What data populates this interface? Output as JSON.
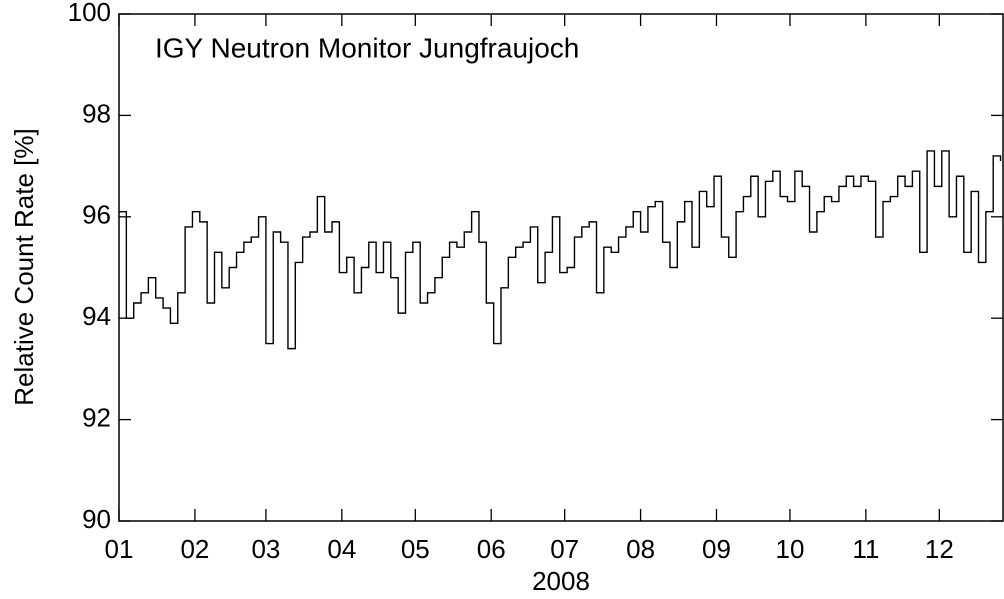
{
  "chart_data": {
    "type": "step",
    "title": "IGY Neutron Monitor Jungfraujoch",
    "ylabel": "Relative Count Rate [%]",
    "xlabel": "2008",
    "x": [
      0,
      3,
      6,
      9,
      12,
      15,
      18,
      21,
      24,
      27,
      30,
      33,
      36,
      39,
      42,
      45,
      48,
      51,
      54,
      57,
      60,
      63,
      66,
      69,
      72,
      75,
      78,
      81,
      84,
      87,
      90,
      93,
      96,
      99,
      102,
      105,
      108,
      111,
      114,
      117,
      120,
      123,
      126,
      129,
      132,
      135,
      138,
      141,
      144,
      147,
      150,
      153,
      156,
      159,
      162,
      165,
      168,
      171,
      174,
      177,
      180,
      183,
      186,
      189,
      192,
      195,
      198,
      201,
      204,
      207,
      210,
      213,
      216,
      219,
      222,
      225,
      228,
      231,
      234,
      237,
      240,
      243,
      246,
      249,
      252,
      255,
      258,
      261,
      264,
      267,
      270,
      273,
      276,
      279,
      282,
      285,
      288,
      291,
      294,
      297,
      300,
      303,
      306,
      309,
      312,
      315,
      318,
      321,
      324,
      327,
      330,
      333,
      336,
      339,
      342,
      345,
      348,
      351,
      354,
      357,
      360
    ],
    "series": [
      {
        "color": "#000000",
        "values": [
          96.1,
          94.0,
          94.3,
          94.5,
          94.8,
          94.4,
          94.2,
          93.9,
          94.5,
          95.8,
          96.1,
          95.9,
          94.3,
          95.3,
          94.6,
          95.0,
          95.3,
          95.5,
          95.6,
          96.0,
          93.5,
          95.7,
          95.5,
          93.4,
          95.1,
          95.6,
          95.7,
          96.4,
          95.7,
          95.9,
          94.9,
          95.2,
          94.5,
          95.0,
          95.5,
          94.9,
          95.5,
          94.8,
          94.1,
          95.3,
          95.5,
          94.3,
          94.5,
          94.8,
          95.2,
          95.5,
          95.4,
          95.7,
          96.1,
          95.5,
          94.3,
          93.5,
          94.6,
          95.2,
          95.4,
          95.5,
          95.8,
          94.7,
          95.3,
          96.0,
          94.9,
          95.0,
          95.6,
          95.8,
          95.9,
          94.5,
          95.4,
          95.3,
          95.6,
          95.8,
          96.1,
          95.7,
          96.2,
          96.3,
          95.5,
          95.0,
          95.9,
          96.3,
          95.4,
          96.5,
          96.2,
          96.8,
          95.6,
          95.2,
          96.1,
          96.4,
          96.8,
          96.0,
          96.7,
          96.9,
          96.4,
          96.3,
          96.9,
          96.6,
          95.7,
          96.1,
          96.4,
          96.3,
          96.6,
          96.8,
          96.6,
          96.8,
          96.7,
          95.6,
          96.3,
          96.4,
          96.8,
          96.6,
          96.9,
          95.3,
          97.3,
          96.6,
          97.3,
          96.0,
          96.8,
          95.3,
          96.5,
          95.1,
          96.1,
          97.2,
          97.1
        ]
      }
    ],
    "xlim": [
      0,
      361
    ],
    "xticks": [
      {
        "value": 0,
        "label": "01"
      },
      {
        "value": 31,
        "label": "02"
      },
      {
        "value": 60,
        "label": "03"
      },
      {
        "value": 91,
        "label": "04"
      },
      {
        "value": 121,
        "label": "05"
      },
      {
        "value": 152,
        "label": "06"
      },
      {
        "value": 182,
        "label": "07"
      },
      {
        "value": 213,
        "label": "08"
      },
      {
        "value": 244,
        "label": "09"
      },
      {
        "value": 274,
        "label": "10"
      },
      {
        "value": 305,
        "label": "11"
      },
      {
        "value": 335,
        "label": "12"
      }
    ],
    "ylim": [
      90,
      100
    ],
    "yticks": [
      90,
      92,
      94,
      96,
      98,
      100
    ]
  }
}
